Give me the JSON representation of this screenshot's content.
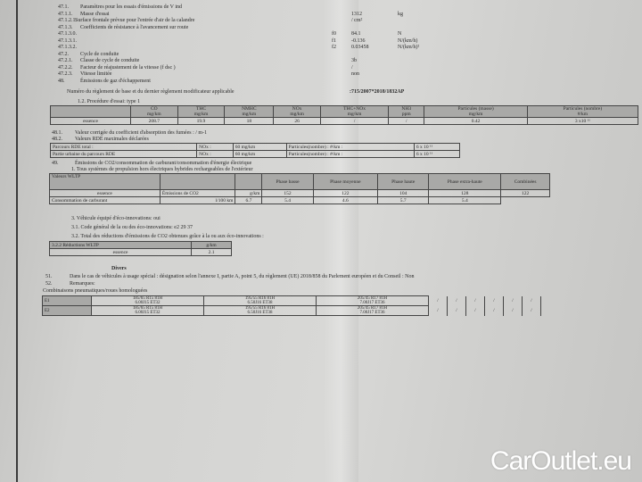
{
  "section47": [
    {
      "num": "47.1.",
      "label": "Paramètres pour les essais d'émissions de V ind",
      "value": "",
      "unit": ""
    },
    {
      "num": "47.1.1.",
      "label": "Masse d'essai",
      "value": "1312",
      "unit": "kg"
    },
    {
      "num": "47.1.2.1.",
      "label": "Surface frontale prévue pour l'entrée d'air de la calandre",
      "value": "/ cm²",
      "unit": ""
    },
    {
      "num": "47.1.3.",
      "label": "Coefficients de résistance à l'avancement sur route",
      "value": "",
      "unit": ""
    },
    {
      "num": "47.1.3.0.",
      "label": "",
      "coef": "f0",
      "value": "84.1",
      "unit": "N"
    },
    {
      "num": "47.1.3.1.",
      "label": "",
      "coef": "f1",
      "value": "-0.136",
      "unit": "N/(km/h)"
    },
    {
      "num": "47.1.3.2.",
      "label": "",
      "coef": "f2",
      "value": "0.03458",
      "unit": "N/(km/h)²"
    },
    {
      "num": "47.2.",
      "label": "Cycle de conduite",
      "value": "",
      "unit": ""
    },
    {
      "num": "47.2.1.",
      "label": "Classe de cycle de conduite",
      "value": "3b",
      "unit": ""
    },
    {
      "num": "47.2.2.",
      "label": "Facteur de réajustement de la vitesse (f dsc )",
      "value": "/",
      "unit": ""
    },
    {
      "num": "47.2.3.",
      "label": "Vitesse limitée",
      "value": "non",
      "unit": ""
    },
    {
      "num": "48.",
      "label": "Émissions de gaz d'échappement",
      "value": "",
      "unit": ""
    }
  ],
  "regulation": {
    "label": "Numéro du règlement de base et du dernier règlement modificateur applicable",
    "value": ":715/2007*2018/1832AP"
  },
  "procedure": "1.2. Procédure d'essai: type 1",
  "emissions_table": {
    "headers": [
      [
        "CO",
        "mg/km"
      ],
      [
        "THC",
        "mg/km"
      ],
      [
        "NMHC",
        "mg/km"
      ],
      [
        "NOx",
        "mg/km"
      ],
      [
        "THC+NOx",
        "mg/km"
      ],
      [
        "NH3",
        "ppm"
      ],
      [
        "Particules (masse)",
        "mg/km"
      ],
      [
        "Particules (nombre)",
        "#/km"
      ]
    ],
    "row": {
      "fuel": "essence",
      "values": [
        "208.7",
        "19.9",
        "18",
        "26",
        "/",
        "/",
        "0.42",
        "3 x10 ¹¹"
      ]
    }
  },
  "s48_1": {
    "num": "48.1.",
    "label": "Valeur corrigée du coefficient d'absorption des fumées : / m-1"
  },
  "s48_2": {
    "num": "48.2.",
    "label": "Valeurs RDE maximales déclarées"
  },
  "rde": [
    {
      "label": "Parcours RDE total :",
      "nox": "NOx :",
      "nox_val": "60 mg/km",
      "pn": "Particules(nombre) : #/km :",
      "pn_val": "6 x 10 ¹¹"
    },
    {
      "label": "Partie urbaine du parcours RDE",
      "nox": "NOx :",
      "nox_val": "60 mg/km",
      "pn": "Particules(nombre) : #/km :",
      "pn_val": "6 x 10 ¹¹"
    }
  ],
  "s49": {
    "num": "49.",
    "label": "Émissions de CO2/consommation de carburant/consommation d'énergie électrique"
  },
  "s49_1": "1. Tous systèmes de propulsion hors électriques hybrides rechargeables de l'extérieur",
  "wltp": {
    "title": "Valeurs WLTP",
    "phases": [
      "Phase basse",
      "Phase moyenne",
      "Phase haute",
      "Phase extra-haute",
      "Combinées"
    ],
    "fuel": "essence",
    "rows": [
      {
        "label": "Émissions de CO2",
        "unit": "g/km",
        "values": [
          "152",
          "122",
          "104",
          "128",
          "122"
        ]
      },
      {
        "label": "Consommation de carburant",
        "unit": "l/100 km",
        "values": [
          "6.7",
          "5.4",
          "4.6",
          "5.7",
          "5.4"
        ]
      }
    ]
  },
  "eco": {
    "l1": "3. Véhicule équipé d'éco-innovations: oui",
    "l2": "3.1. Code général de la ou des éco-innovations: e2 29 37",
    "l3": "3.2. Total des réductions d'émissions de CO2 obtenues grâce à la ou aux éco-innovations :",
    "table": {
      "h1": "3.2.2 Réductions WLTP",
      "h2": "g/km",
      "fuel": "essence",
      "value": "2.1"
    }
  },
  "divers": {
    "title": "Divers",
    "s51": {
      "num": "51.",
      "label": "Dans le cas de véhicules à usage spécial : désignation selon l'annexe I, partie A, point 5, du règlement (UE) 2018/858 du Parlement européen et du Conseil : Non"
    },
    "s52": {
      "num": "52.",
      "label": "Remarques:"
    },
    "tyres_label": "Combinaisons pneumatiques/roues homologuées",
    "tyres": [
      {
        "id": "E1",
        "cols": [
          [
            "185/65 R15 81H",
            "6.00J15 ET32"
          ],
          [
            "195/55 R16 81H",
            "6.50J16 ET38"
          ],
          [
            "205/45 R17 81H",
            "7.00J17 ET36"
          ]
        ]
      },
      {
        "id": "E2",
        "cols": [
          [
            "185/65 R15 81H",
            "6.00J15 ET32"
          ],
          [
            "195/55 R16 81H",
            "6.50J16 ET38"
          ],
          [
            "205/45 R17 81H",
            "7.00J17 ET36"
          ]
        ]
      }
    ]
  },
  "watermark": "CarOutlet.eu"
}
